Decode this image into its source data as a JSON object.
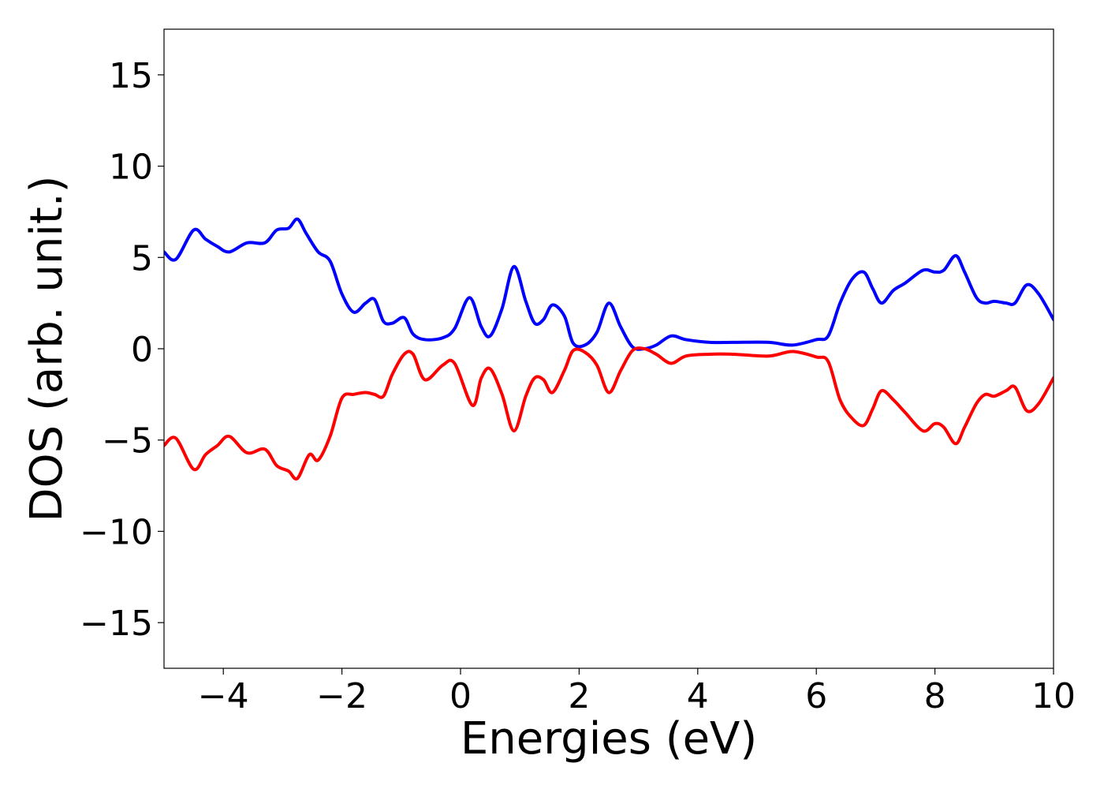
{
  "chart_data": {
    "type": "line",
    "title": "",
    "xlabel": "Energies (eV)",
    "ylabel": "DOS (arb. unit.)",
    "xlim": [
      -5,
      10
    ],
    "ylim": [
      -17.5,
      17.5
    ],
    "xticks": [
      -4,
      -2,
      0,
      2,
      4,
      6,
      8,
      10
    ],
    "xtick_labels": [
      "−4",
      "−2",
      "0",
      "2",
      "4",
      "6",
      "8",
      "10"
    ],
    "yticks": [
      15,
      10,
      5,
      0,
      -5,
      -10,
      -15
    ],
    "ytick_labels": [
      "15",
      "10",
      "5",
      "0",
      "−5",
      "−10",
      "−15"
    ],
    "grid": false,
    "series": [
      {
        "color": "#0000ff",
        "x": [
          -5.0,
          -4.8,
          -4.5,
          -4.3,
          -4.1,
          -3.9,
          -3.6,
          -3.3,
          -3.1,
          -2.9,
          -2.75,
          -2.6,
          -2.4,
          -2.2,
          -2.0,
          -1.8,
          -1.6,
          -1.45,
          -1.3,
          -1.15,
          -0.95,
          -0.8,
          -0.6,
          -0.3,
          -0.1,
          0.15,
          0.35,
          0.5,
          0.7,
          0.9,
          1.1,
          1.25,
          1.4,
          1.55,
          1.75,
          1.9,
          2.1,
          2.3,
          2.5,
          2.7,
          2.9,
          3.1,
          3.3,
          3.55,
          3.8,
          4.2,
          4.6,
          5.2,
          5.6,
          6.0,
          6.2,
          6.4,
          6.6,
          6.8,
          6.95,
          7.1,
          7.3,
          7.5,
          7.8,
          8.0,
          8.15,
          8.35,
          8.5,
          8.7,
          8.85,
          9.0,
          9.2,
          9.35,
          9.55,
          9.75,
          10.0
        ],
        "y": [
          5.3,
          4.9,
          6.5,
          6.0,
          5.6,
          5.3,
          5.8,
          5.8,
          6.5,
          6.6,
          7.1,
          6.3,
          5.3,
          4.8,
          3.0,
          2.0,
          2.5,
          2.7,
          1.5,
          1.4,
          1.7,
          0.8,
          0.5,
          0.6,
          1.1,
          2.8,
          1.2,
          0.7,
          2.2,
          4.5,
          2.6,
          1.4,
          1.6,
          2.4,
          1.8,
          0.3,
          0.2,
          0.9,
          2.5,
          1.2,
          0.1,
          0.0,
          0.2,
          0.7,
          0.5,
          0.35,
          0.35,
          0.35,
          0.2,
          0.5,
          0.7,
          2.5,
          3.8,
          4.2,
          3.3,
          2.5,
          3.2,
          3.6,
          4.3,
          4.2,
          4.3,
          5.1,
          4.2,
          2.8,
          2.5,
          2.6,
          2.5,
          2.5,
          3.5,
          3.0,
          1.6
        ]
      },
      {
        "color": "#ff0000",
        "x": [
          -5.0,
          -4.8,
          -4.5,
          -4.3,
          -4.1,
          -3.9,
          -3.6,
          -3.3,
          -3.1,
          -2.9,
          -2.75,
          -2.55,
          -2.4,
          -2.2,
          -2.0,
          -1.8,
          -1.6,
          -1.45,
          -1.3,
          -1.15,
          -0.95,
          -0.8,
          -0.6,
          -0.3,
          -0.1,
          0.2,
          0.35,
          0.5,
          0.7,
          0.9,
          1.1,
          1.25,
          1.4,
          1.55,
          1.75,
          1.9,
          2.1,
          2.3,
          2.5,
          2.7,
          2.9,
          3.1,
          3.3,
          3.55,
          3.8,
          4.2,
          4.6,
          5.2,
          5.6,
          6.0,
          6.2,
          6.4,
          6.6,
          6.8,
          6.95,
          7.1,
          7.3,
          7.5,
          7.8,
          8.0,
          8.15,
          8.35,
          8.5,
          8.7,
          8.85,
          9.0,
          9.2,
          9.35,
          9.55,
          9.75,
          10.0
        ],
        "y": [
          -5.3,
          -4.9,
          -6.6,
          -5.8,
          -5.3,
          -4.8,
          -5.7,
          -5.5,
          -6.4,
          -6.7,
          -7.1,
          -5.8,
          -6.1,
          -4.8,
          -2.7,
          -2.5,
          -2.4,
          -2.5,
          -2.6,
          -1.4,
          -0.3,
          -0.3,
          -1.7,
          -0.9,
          -0.8,
          -3.1,
          -1.6,
          -1.1,
          -2.5,
          -4.5,
          -2.6,
          -1.6,
          -1.7,
          -2.4,
          -1.2,
          -0.1,
          -0.2,
          -0.9,
          -2.4,
          -1.2,
          -0.1,
          0.0,
          -0.3,
          -0.8,
          -0.4,
          -0.3,
          -0.3,
          -0.4,
          -0.15,
          -0.45,
          -0.7,
          -2.8,
          -3.8,
          -4.2,
          -3.3,
          -2.3,
          -2.8,
          -3.5,
          -4.5,
          -4.1,
          -4.3,
          -5.2,
          -4.3,
          -3.0,
          -2.5,
          -2.6,
          -2.3,
          -2.1,
          -3.4,
          -3.0,
          -1.6
        ]
      }
    ]
  }
}
